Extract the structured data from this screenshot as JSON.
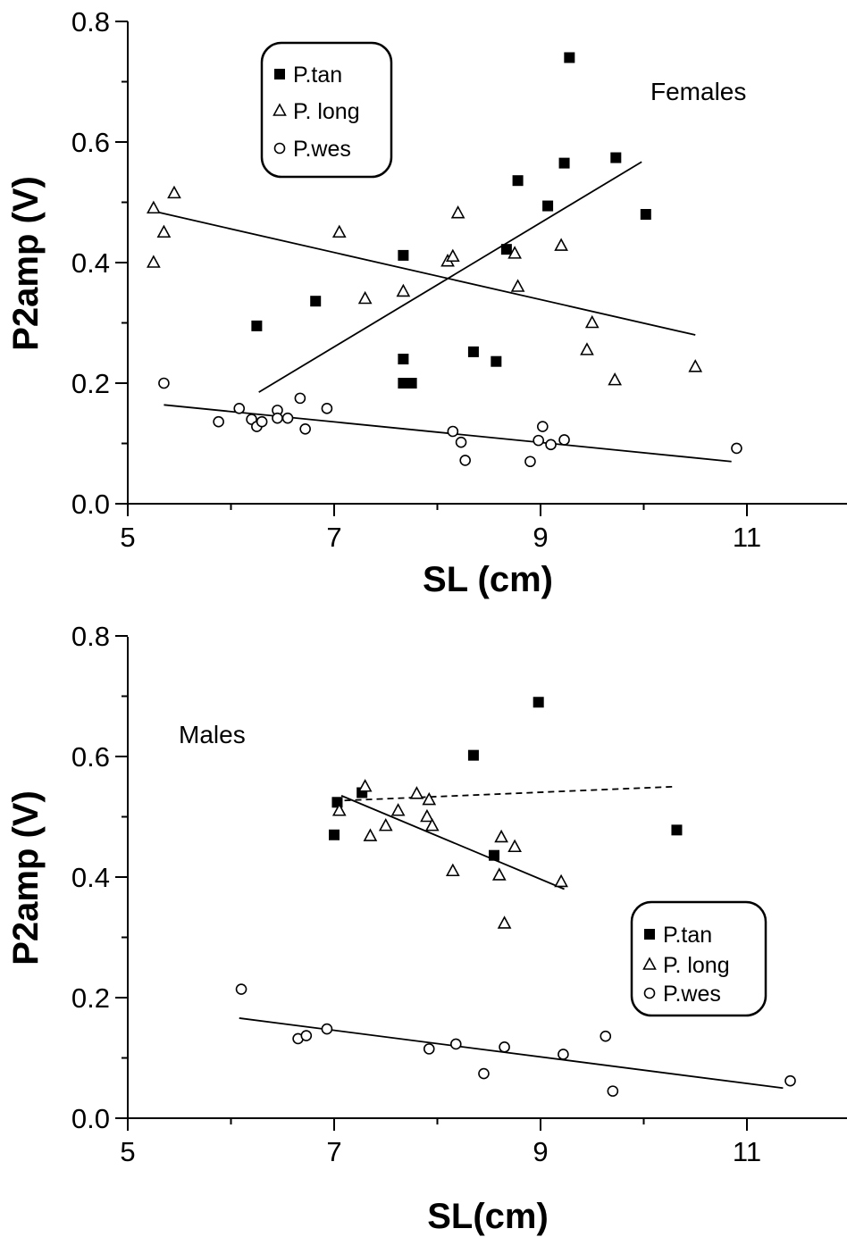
{
  "chart_data": [
    {
      "type": "scatter",
      "annotation": "Females",
      "xlabel": "SL (cm)",
      "ylabel": "P2amp (V)",
      "xlim": [
        5,
        12.5
      ],
      "ylim": [
        0,
        0.8
      ],
      "xticks": [
        "5",
        "7",
        "9",
        "11"
      ],
      "yticks": [
        "0.0",
        "0.2",
        "0.4",
        "0.6",
        "0.8"
      ],
      "legend_position": "top-left",
      "series": [
        {
          "name": "P.tan",
          "marker": "square",
          "points": [
            [
              6.25,
              0.295
            ],
            [
              6.82,
              0.336
            ],
            [
              7.67,
              0.412
            ],
            [
              7.67,
              0.24
            ],
            [
              7.67,
              0.2
            ],
            [
              7.75,
              0.2
            ],
            [
              8.35,
              0.252
            ],
            [
              8.57,
              0.236
            ],
            [
              8.67,
              0.422
            ],
            [
              8.78,
              0.536
            ],
            [
              9.07,
              0.494
            ],
            [
              9.23,
              0.565
            ],
            [
              9.28,
              0.74
            ],
            [
              9.73,
              0.574
            ],
            [
              10.02,
              0.48
            ]
          ],
          "trend": [
            [
              6.27,
              0.185
            ],
            [
              9.98,
              0.567
            ]
          ],
          "trend_style": "solid"
        },
        {
          "name": "P. long",
          "marker": "triangle",
          "points": [
            [
              5.25,
              0.49
            ],
            [
              5.25,
              0.4
            ],
            [
              5.35,
              0.45
            ],
            [
              5.45,
              0.515
            ],
            [
              7.05,
              0.45
            ],
            [
              7.3,
              0.34
            ],
            [
              7.67,
              0.352
            ],
            [
              8.1,
              0.402
            ],
            [
              8.15,
              0.41
            ],
            [
              8.2,
              0.482
            ],
            [
              8.75,
              0.415
            ],
            [
              8.78,
              0.36
            ],
            [
              9.2,
              0.428
            ],
            [
              9.45,
              0.255
            ],
            [
              9.5,
              0.3
            ],
            [
              9.72,
              0.205
            ],
            [
              10.5,
              0.227
            ]
          ],
          "trend": [
            [
              5.28,
              0.484
            ],
            [
              10.5,
              0.28
            ]
          ],
          "trend_style": "solid"
        },
        {
          "name": "P.wes",
          "marker": "circle",
          "points": [
            [
              5.35,
              0.2
            ],
            [
              5.88,
              0.136
            ],
            [
              6.08,
              0.158
            ],
            [
              6.2,
              0.14
            ],
            [
              6.25,
              0.128
            ],
            [
              6.3,
              0.136
            ],
            [
              6.45,
              0.155
            ],
            [
              6.45,
              0.142
            ],
            [
              6.55,
              0.142
            ],
            [
              6.67,
              0.175
            ],
            [
              6.72,
              0.124
            ],
            [
              6.93,
              0.158
            ],
            [
              8.15,
              0.12
            ],
            [
              8.23,
              0.102
            ],
            [
              8.27,
              0.072
            ],
            [
              8.9,
              0.07
            ],
            [
              8.98,
              0.105
            ],
            [
              9.02,
              0.128
            ],
            [
              9.1,
              0.098
            ],
            [
              9.23,
              0.106
            ],
            [
              10.9,
              0.092
            ]
          ],
          "trend": [
            [
              5.35,
              0.164
            ],
            [
              10.85,
              0.07
            ]
          ],
          "trend_style": "solid"
        }
      ]
    },
    {
      "type": "scatter",
      "annotation": "Males",
      "xlabel": "SL(cm)",
      "ylabel": "P2amp (V)",
      "xlim": [
        5,
        12.5
      ],
      "ylim": [
        0,
        0.8
      ],
      "xticks": [
        "5",
        "7",
        "9",
        "11"
      ],
      "yticks": [
        "0.0",
        "0.2",
        "0.4",
        "0.6",
        "0.8"
      ],
      "legend_position": "bottom-right",
      "series": [
        {
          "name": "P.tan",
          "marker": "square",
          "points": [
            [
              7.0,
              0.47
            ],
            [
              7.03,
              0.524
            ],
            [
              7.27,
              0.54
            ],
            [
              8.35,
              0.602
            ],
            [
              8.55,
              0.436
            ],
            [
              8.98,
              0.69
            ],
            [
              10.32,
              0.478
            ]
          ],
          "trend": [
            [
              7.1,
              0.527
            ],
            [
              10.3,
              0.55
            ]
          ],
          "trend_style": "dashed"
        },
        {
          "name": "P. long",
          "marker": "triangle",
          "points": [
            [
              7.05,
              0.51
            ],
            [
              7.3,
              0.55
            ],
            [
              7.35,
              0.468
            ],
            [
              7.5,
              0.485
            ],
            [
              7.62,
              0.51
            ],
            [
              7.8,
              0.538
            ],
            [
              7.9,
              0.5
            ],
            [
              7.92,
              0.528
            ],
            [
              7.95,
              0.485
            ],
            [
              8.15,
              0.41
            ],
            [
              8.6,
              0.403
            ],
            [
              8.62,
              0.466
            ],
            [
              8.65,
              0.323
            ],
            [
              8.75,
              0.45
            ],
            [
              9.2,
              0.392
            ]
          ],
          "trend": [
            [
              7.07,
              0.535
            ],
            [
              9.23,
              0.38
            ]
          ],
          "trend_style": "solid"
        },
        {
          "name": "P.wes",
          "marker": "circle",
          "points": [
            [
              6.1,
              0.214
            ],
            [
              6.65,
              0.132
            ],
            [
              6.73,
              0.137
            ],
            [
              6.93,
              0.148
            ],
            [
              7.92,
              0.115
            ],
            [
              8.18,
              0.123
            ],
            [
              8.45,
              0.074
            ],
            [
              8.65,
              0.118
            ],
            [
              9.22,
              0.106
            ],
            [
              9.63,
              0.136
            ],
            [
              9.7,
              0.045
            ],
            [
              11.42,
              0.062
            ]
          ],
          "trend": [
            [
              6.08,
              0.166
            ],
            [
              11.35,
              0.05
            ]
          ],
          "trend_style": "solid"
        }
      ]
    }
  ]
}
